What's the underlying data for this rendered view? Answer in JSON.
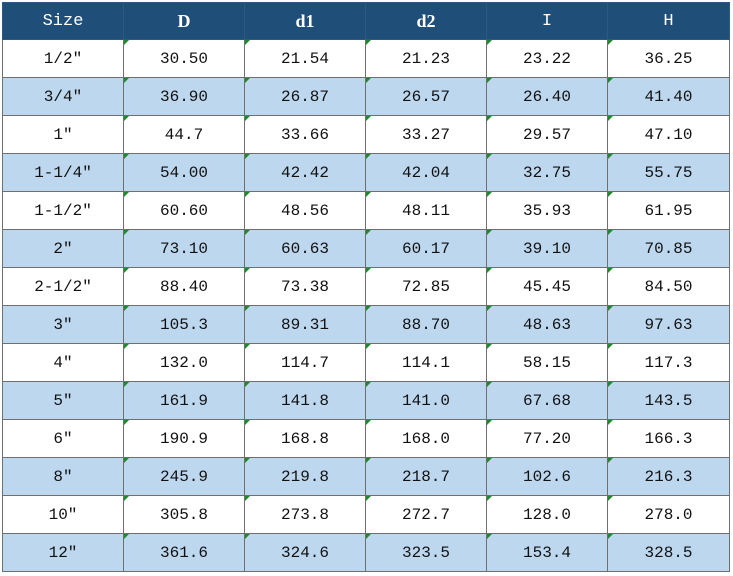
{
  "table": {
    "headers": [
      "Size",
      "D",
      "d1",
      "d2",
      "I",
      "H"
    ],
    "rows": [
      [
        "1/2\"",
        "30.50",
        "21.54",
        "21.23",
        "23.22",
        "36.25"
      ],
      [
        "3/4\"",
        "36.90",
        "26.87",
        "26.57",
        "26.40",
        "41.40"
      ],
      [
        "1\"",
        "44.7",
        "33.66",
        "33.27",
        "29.57",
        "47.10"
      ],
      [
        "1-1/4\"",
        "54.00",
        "42.42",
        "42.04",
        "32.75",
        "55.75"
      ],
      [
        "1-1/2\"",
        "60.60",
        "48.56",
        "48.11",
        "35.93",
        "61.95"
      ],
      [
        "2\"",
        "73.10",
        "60.63",
        "60.17",
        "39.10",
        "70.85"
      ],
      [
        "2-1/2\"",
        "88.40",
        "73.38",
        "72.85",
        "45.45",
        "84.50"
      ],
      [
        "3\"",
        "105.3",
        "89.31",
        "88.70",
        "48.63",
        "97.63"
      ],
      [
        "4\"",
        "132.0",
        "114.7",
        "114.1",
        "58.15",
        "117.3"
      ],
      [
        "5\"",
        "161.9",
        "141.8",
        "141.0",
        "67.68",
        "143.5"
      ],
      [
        "6\"",
        "190.9",
        "168.8",
        "168.0",
        "77.20",
        "166.3"
      ],
      [
        "8\"",
        "245.9",
        "219.8",
        "218.7",
        "102.6",
        "216.3"
      ],
      [
        "10\"",
        "305.8",
        "273.8",
        "272.7",
        "128.0",
        "278.0"
      ],
      [
        "12\"",
        "361.6",
        "324.6",
        "323.5",
        "153.4",
        "328.5"
      ]
    ]
  },
  "colors": {
    "header_bg": "#1f4e79",
    "header_text": "#ffffff",
    "band_fill": "#bdd7ee",
    "corner_marker": "#1e8a2a"
  }
}
